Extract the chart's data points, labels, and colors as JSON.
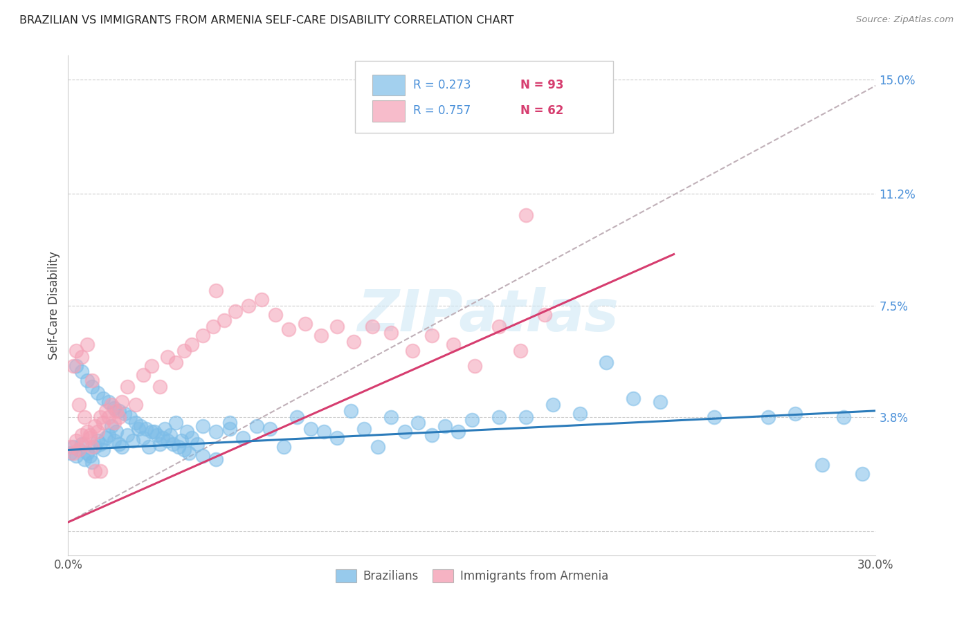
{
  "title": "BRAZILIAN VS IMMIGRANTS FROM ARMENIA SELF-CARE DISABILITY CORRELATION CHART",
  "source": "Source: ZipAtlas.com",
  "ylabel": "Self-Care Disability",
  "xmin": 0.0,
  "xmax": 0.3,
  "ymin": -0.008,
  "ymax": 0.158,
  "yticks": [
    0.0,
    0.038,
    0.075,
    0.112,
    0.15
  ],
  "ytick_labels": [
    "",
    "3.8%",
    "7.5%",
    "11.2%",
    "15.0%"
  ],
  "xticks": [
    0.0,
    0.05,
    0.1,
    0.15,
    0.2,
    0.25,
    0.3
  ],
  "xtick_labels": [
    "0.0%",
    "",
    "",
    "",
    "",
    "",
    "30.0%"
  ],
  "legend_r1": "R = 0.273",
  "legend_n1": "N = 93",
  "legend_r2": "R = 0.757",
  "legend_n2": "N = 62",
  "blue_color": "#7dbde8",
  "pink_color": "#f4a0b5",
  "blue_line_color": "#2b7bba",
  "pink_line_color": "#d63d6f",
  "dashed_line_color": "#c0b0b8",
  "watermark": "ZIPatlas",
  "blue_trend_x": [
    0.0,
    0.3
  ],
  "blue_trend_y": [
    0.027,
    0.04
  ],
  "pink_trend_x": [
    0.0,
    0.225
  ],
  "pink_trend_y": [
    0.003,
    0.092
  ],
  "dashed_trend_x": [
    0.0,
    0.3
  ],
  "dashed_trend_y": [
    0.003,
    0.148
  ],
  "blue_scatter_x": [
    0.001,
    0.002,
    0.003,
    0.004,
    0.005,
    0.006,
    0.007,
    0.008,
    0.009,
    0.01,
    0.011,
    0.012,
    0.013,
    0.014,
    0.015,
    0.016,
    0.017,
    0.018,
    0.019,
    0.02,
    0.022,
    0.024,
    0.026,
    0.028,
    0.03,
    0.032,
    0.034,
    0.036,
    0.038,
    0.04,
    0.042,
    0.044,
    0.046,
    0.048,
    0.05,
    0.055,
    0.06,
    0.065,
    0.07,
    0.075,
    0.08,
    0.085,
    0.09,
    0.095,
    0.1,
    0.105,
    0.11,
    0.115,
    0.12,
    0.125,
    0.13,
    0.135,
    0.14,
    0.145,
    0.15,
    0.16,
    0.17,
    0.18,
    0.19,
    0.2,
    0.21,
    0.22,
    0.24,
    0.26,
    0.28,
    0.295,
    0.003,
    0.005,
    0.007,
    0.009,
    0.011,
    0.013,
    0.015,
    0.017,
    0.019,
    0.021,
    0.023,
    0.025,
    0.027,
    0.029,
    0.031,
    0.033,
    0.035,
    0.037,
    0.039,
    0.041,
    0.043,
    0.045,
    0.05,
    0.055,
    0.06,
    0.27,
    0.288
  ],
  "blue_scatter_y": [
    0.026,
    0.028,
    0.025,
    0.027,
    0.029,
    0.024,
    0.026,
    0.025,
    0.023,
    0.028,
    0.03,
    0.029,
    0.027,
    0.031,
    0.032,
    0.035,
    0.03,
    0.033,
    0.029,
    0.028,
    0.032,
    0.03,
    0.034,
    0.031,
    0.028,
    0.033,
    0.029,
    0.034,
    0.032,
    0.036,
    0.03,
    0.033,
    0.031,
    0.029,
    0.035,
    0.033,
    0.036,
    0.031,
    0.035,
    0.034,
    0.028,
    0.038,
    0.034,
    0.033,
    0.031,
    0.04,
    0.034,
    0.028,
    0.038,
    0.033,
    0.036,
    0.032,
    0.035,
    0.033,
    0.037,
    0.038,
    0.038,
    0.042,
    0.039,
    0.056,
    0.044,
    0.043,
    0.038,
    0.038,
    0.022,
    0.019,
    0.055,
    0.053,
    0.05,
    0.048,
    0.046,
    0.044,
    0.043,
    0.041,
    0.04,
    0.039,
    0.038,
    0.036,
    0.035,
    0.034,
    0.033,
    0.032,
    0.031,
    0.03,
    0.029,
    0.028,
    0.027,
    0.026,
    0.025,
    0.024,
    0.034,
    0.039,
    0.038
  ],
  "pink_scatter_x": [
    0.001,
    0.002,
    0.003,
    0.004,
    0.005,
    0.006,
    0.007,
    0.008,
    0.009,
    0.01,
    0.011,
    0.012,
    0.013,
    0.014,
    0.015,
    0.016,
    0.017,
    0.018,
    0.019,
    0.02,
    0.022,
    0.025,
    0.028,
    0.031,
    0.034,
    0.037,
    0.04,
    0.043,
    0.046,
    0.05,
    0.054,
    0.058,
    0.062,
    0.067,
    0.072,
    0.077,
    0.082,
    0.088,
    0.094,
    0.1,
    0.106,
    0.113,
    0.12,
    0.128,
    0.135,
    0.143,
    0.151,
    0.16,
    0.168,
    0.177,
    0.003,
    0.005,
    0.007,
    0.009,
    0.002,
    0.004,
    0.006,
    0.008,
    0.01,
    0.012,
    0.17,
    0.055
  ],
  "pink_scatter_y": [
    0.028,
    0.026,
    0.03,
    0.027,
    0.032,
    0.029,
    0.033,
    0.031,
    0.028,
    0.035,
    0.033,
    0.038,
    0.036,
    0.04,
    0.038,
    0.042,
    0.036,
    0.04,
    0.038,
    0.043,
    0.048,
    0.042,
    0.052,
    0.055,
    0.048,
    0.058,
    0.056,
    0.06,
    0.062,
    0.065,
    0.068,
    0.07,
    0.073,
    0.075,
    0.077,
    0.072,
    0.067,
    0.069,
    0.065,
    0.068,
    0.063,
    0.068,
    0.066,
    0.06,
    0.065,
    0.062,
    0.055,
    0.068,
    0.06,
    0.072,
    0.06,
    0.058,
    0.062,
    0.05,
    0.055,
    0.042,
    0.038,
    0.032,
    0.02,
    0.02,
    0.105,
    0.08
  ]
}
